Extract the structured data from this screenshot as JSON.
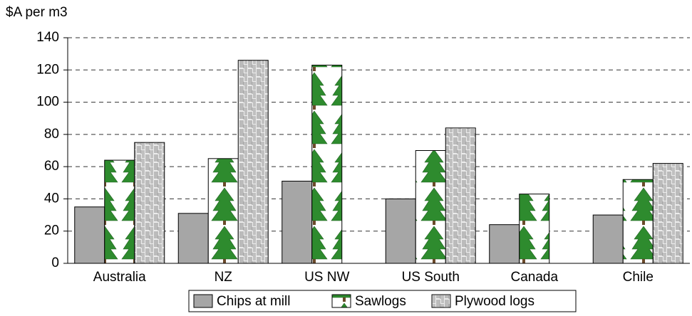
{
  "chart_data": {
    "type": "bar",
    "y_label": "$A per m3",
    "categories": [
      "Australia",
      "NZ",
      "US NW",
      "US South",
      "Canada",
      "Chile"
    ],
    "series": [
      {
        "name": "Chips at mill",
        "color": "#a6a6a6",
        "values": [
          35,
          31,
          51,
          40,
          24,
          30
        ]
      },
      {
        "name": "Sawlogs",
        "color": "#2e8b2e",
        "values": [
          64,
          65,
          123,
          70,
          43,
          52
        ]
      },
      {
        "name": "Plywood logs",
        "color": "#a0a0a0",
        "values": [
          75,
          126,
          null,
          84,
          null,
          62
        ]
      }
    ],
    "ylim": [
      0,
      140
    ],
    "yticks": [
      0,
      20,
      40,
      60,
      80,
      100,
      120,
      140
    ],
    "grid": true
  }
}
